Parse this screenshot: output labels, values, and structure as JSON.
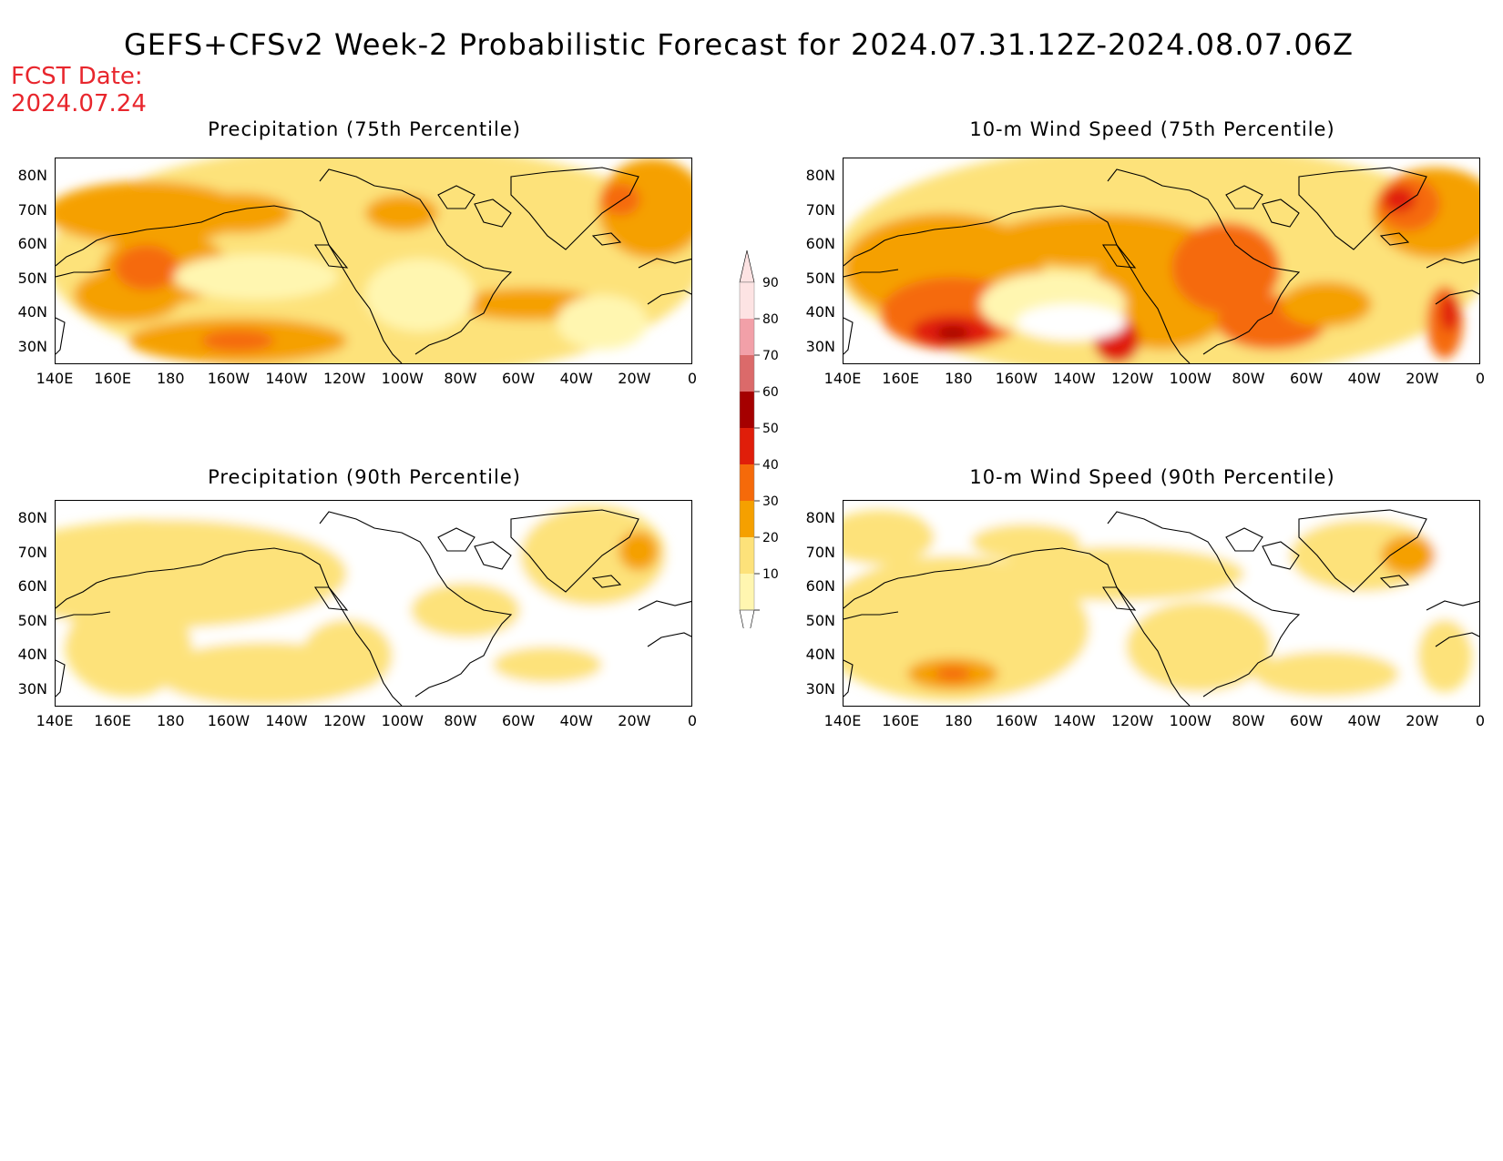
{
  "title": "GEFS+CFSv2 Week-2 Probabilistic Forecast for 2024.07.31.12Z-2024.08.07.06Z",
  "fcst_date_label": "FCST Date:",
  "fcst_date_value": "2024.07.24",
  "lat_labels": [
    "80N",
    "70N",
    "60N",
    "50N",
    "40N",
    "30N"
  ],
  "lon_labels": [
    "140E",
    "160E",
    "180",
    "160W",
    "140W",
    "120W",
    "100W",
    "80W",
    "60W",
    "40W",
    "20W",
    "0"
  ],
  "panels": [
    {
      "title": "Precipitation (75th Percentile)"
    },
    {
      "title": "10-m Wind Speed (75th Percentile)"
    },
    {
      "title": "Precipitation (90th Percentile)"
    },
    {
      "title": "10-m Wind Speed (90th Percentile)"
    }
  ],
  "colorbar": {
    "labels": [
      "90",
      "80",
      "70",
      "60",
      "50",
      "40",
      "30",
      "20",
      "10"
    ],
    "colors": [
      "#fde3e3",
      "#f2a0a8",
      "#db6a6a",
      "#a50000",
      "#e01e0a",
      "#f56a0a",
      "#f5a000",
      "#fde27a",
      "#fff6b0"
    ]
  }
}
